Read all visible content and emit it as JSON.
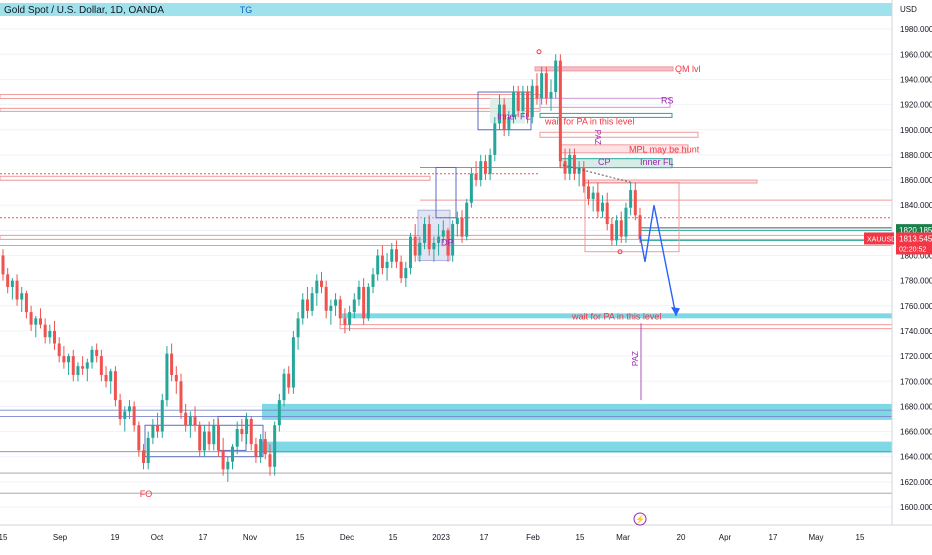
{
  "header": {
    "symbol_title": "Gold Spot / U.S. Dollar, 1D, OANDA",
    "top_band_label": "TG"
  },
  "price_axis": {
    "currency": "USD",
    "ticks": [
      1600,
      1620,
      1640,
      1660,
      1680,
      1700,
      1720,
      1740,
      1760,
      1780,
      1800,
      1820,
      1840,
      1860,
      1880,
      1900,
      1920,
      1940,
      1960,
      1980
    ],
    "tick_labels": [
      "1600.000",
      "1620.000",
      "1640.000",
      "1660.000",
      "1680.000",
      "1700.000",
      "1720.000",
      "1740.000",
      "1760.000",
      "1780.000",
      "1800.000",
      "1820.000",
      "1840.000",
      "1860.000",
      "1880.000",
      "1900.000",
      "1920.000",
      "1940.000",
      "1960.000",
      "1980.000"
    ],
    "price_tags": [
      {
        "value": 1820.185,
        "label": "1820.185",
        "color": "#1a7f4b"
      },
      {
        "value": 1813.545,
        "label": "1813.545",
        "sub": "02:20:52",
        "symbol": "XAUUSD",
        "color": "#f23645"
      }
    ]
  },
  "time_axis": {
    "labels": [
      "15",
      "Sep",
      "19",
      "Oct",
      "17",
      "Nov",
      "15",
      "Dec",
      "15",
      "2023",
      "17",
      "Feb",
      "15",
      "Mar",
      "20",
      "Apr",
      "17",
      "May",
      "15"
    ]
  },
  "annotations": {
    "qm_lvl": "QM lvl",
    "rs": "RS",
    "wait_pa_top": "wait for PA in this level",
    "inner_fl_left": "Inner FL",
    "paz_top": "PAZ",
    "mpl": "MPL may be hunt",
    "cp": "CP",
    "inner_fl_right": "Inner FL",
    "dp": "DP",
    "wait_pa_bottom": "wait for PA in this level",
    "paz_bottom": "PAZ",
    "fo": "FO"
  },
  "colors": {
    "up": "#26a69a",
    "down": "#ef5350",
    "zone_cyan": "#7fd8e6",
    "projection": "#2962ff",
    "label_red": "#f23645",
    "label_purple": "#9c27b0"
  },
  "chart_data": {
    "type": "candlestick",
    "title": "Gold Spot / U.S. Dollar, 1D, OANDA",
    "ylabel": "USD",
    "ylim": [
      1590,
      1995
    ],
    "x_ticks": [
      "15",
      "Sep",
      "19",
      "Oct",
      "17",
      "Nov",
      "15",
      "Dec",
      "15",
      "2023",
      "17",
      "Feb",
      "15",
      "Mar",
      "20",
      "Apr",
      "17",
      "May",
      "15"
    ],
    "candles": [
      [
        1800,
        1805,
        1780,
        1785
      ],
      [
        1785,
        1790,
        1770,
        1775
      ],
      [
        1775,
        1782,
        1765,
        1780
      ],
      [
        1780,
        1785,
        1760,
        1765
      ],
      [
        1765,
        1775,
        1755,
        1770
      ],
      [
        1770,
        1772,
        1750,
        1755
      ],
      [
        1755,
        1760,
        1740,
        1745
      ],
      [
        1745,
        1752,
        1735,
        1750
      ],
      [
        1750,
        1758,
        1742,
        1745
      ],
      [
        1745,
        1750,
        1730,
        1735
      ],
      [
        1735,
        1745,
        1730,
        1740
      ],
      [
        1740,
        1748,
        1725,
        1730
      ],
      [
        1730,
        1735,
        1715,
        1720
      ],
      [
        1720,
        1728,
        1710,
        1715
      ],
      [
        1715,
        1722,
        1705,
        1720
      ],
      [
        1720,
        1725,
        1700,
        1705
      ],
      [
        1705,
        1715,
        1700,
        1712
      ],
      [
        1712,
        1720,
        1705,
        1710
      ],
      [
        1710,
        1718,
        1700,
        1715
      ],
      [
        1715,
        1728,
        1710,
        1725
      ],
      [
        1725,
        1730,
        1715,
        1720
      ],
      [
        1720,
        1725,
        1700,
        1705
      ],
      [
        1705,
        1712,
        1695,
        1700
      ],
      [
        1700,
        1710,
        1690,
        1708
      ],
      [
        1708,
        1712,
        1680,
        1685
      ],
      [
        1685,
        1690,
        1665,
        1670
      ],
      [
        1670,
        1680,
        1660,
        1676
      ],
      [
        1676,
        1685,
        1670,
        1680
      ],
      [
        1680,
        1684,
        1660,
        1665
      ],
      [
        1665,
        1668,
        1640,
        1645
      ],
      [
        1645,
        1650,
        1630,
        1635
      ],
      [
        1635,
        1660,
        1630,
        1655
      ],
      [
        1655,
        1670,
        1650,
        1665
      ],
      [
        1665,
        1675,
        1655,
        1660
      ],
      [
        1660,
        1690,
        1655,
        1685
      ],
      [
        1685,
        1728,
        1680,
        1722
      ],
      [
        1722,
        1730,
        1700,
        1705
      ],
      [
        1705,
        1712,
        1690,
        1700
      ],
      [
        1700,
        1706,
        1670,
        1675
      ],
      [
        1675,
        1682,
        1660,
        1665
      ],
      [
        1665,
        1676,
        1655,
        1672
      ],
      [
        1672,
        1680,
        1660,
        1665
      ],
      [
        1665,
        1668,
        1640,
        1645
      ],
      [
        1645,
        1665,
        1640,
        1660
      ],
      [
        1660,
        1668,
        1645,
        1650
      ],
      [
        1650,
        1670,
        1645,
        1665
      ],
      [
        1665,
        1670,
        1640,
        1645
      ],
      [
        1645,
        1655,
        1625,
        1630
      ],
      [
        1630,
        1640,
        1620,
        1636
      ],
      [
        1636,
        1650,
        1630,
        1648
      ],
      [
        1648,
        1668,
        1642,
        1662
      ],
      [
        1662,
        1670,
        1652,
        1658
      ],
      [
        1658,
        1675,
        1650,
        1670
      ],
      [
        1670,
        1672,
        1645,
        1650
      ],
      [
        1650,
        1655,
        1635,
        1640
      ],
      [
        1640,
        1658,
        1635,
        1654
      ],
      [
        1654,
        1660,
        1638,
        1642
      ],
      [
        1642,
        1650,
        1625,
        1632
      ],
      [
        1632,
        1668,
        1625,
        1665
      ],
      [
        1665,
        1690,
        1660,
        1685
      ],
      [
        1685,
        1710,
        1680,
        1706
      ],
      [
        1706,
        1712,
        1690,
        1695
      ],
      [
        1695,
        1740,
        1690,
        1735
      ],
      [
        1735,
        1755,
        1725,
        1750
      ],
      [
        1750,
        1770,
        1745,
        1765
      ],
      [
        1765,
        1775,
        1750,
        1756
      ],
      [
        1756,
        1775,
        1752,
        1770
      ],
      [
        1770,
        1785,
        1760,
        1780
      ],
      [
        1780,
        1787,
        1770,
        1775
      ],
      [
        1775,
        1780,
        1750,
        1756
      ],
      [
        1756,
        1765,
        1745,
        1760
      ],
      [
        1760,
        1770,
        1752,
        1765
      ],
      [
        1765,
        1768,
        1745,
        1750
      ],
      [
        1750,
        1758,
        1738,
        1745
      ],
      [
        1745,
        1760,
        1740,
        1755
      ],
      [
        1755,
        1770,
        1750,
        1765
      ],
      [
        1765,
        1780,
        1760,
        1775
      ],
      [
        1775,
        1782,
        1745,
        1750
      ],
      [
        1750,
        1778,
        1748,
        1775
      ],
      [
        1775,
        1790,
        1770,
        1785
      ],
      [
        1785,
        1805,
        1780,
        1800
      ],
      [
        1800,
        1808,
        1785,
        1790
      ],
      [
        1790,
        1802,
        1780,
        1795
      ],
      [
        1795,
        1810,
        1790,
        1805
      ],
      [
        1805,
        1812,
        1790,
        1795
      ],
      [
        1795,
        1800,
        1778,
        1782
      ],
      [
        1782,
        1795,
        1775,
        1790
      ],
      [
        1790,
        1818,
        1785,
        1815
      ],
      [
        1815,
        1825,
        1795,
        1800
      ],
      [
        1800,
        1815,
        1795,
        1810
      ],
      [
        1810,
        1830,
        1805,
        1825
      ],
      [
        1825,
        1832,
        1800,
        1805
      ],
      [
        1805,
        1815,
        1795,
        1810
      ],
      [
        1810,
        1825,
        1800,
        1815
      ],
      [
        1815,
        1828,
        1810,
        1820
      ],
      [
        1820,
        1822,
        1795,
        1800
      ],
      [
        1800,
        1828,
        1795,
        1825
      ],
      [
        1825,
        1835,
        1815,
        1830
      ],
      [
        1830,
        1836,
        1810,
        1815
      ],
      [
        1815,
        1845,
        1812,
        1842
      ],
      [
        1842,
        1870,
        1838,
        1865
      ],
      [
        1865,
        1875,
        1855,
        1860
      ],
      [
        1860,
        1880,
        1855,
        1875
      ],
      [
        1875,
        1880,
        1860,
        1865
      ],
      [
        1865,
        1885,
        1860,
        1880
      ],
      [
        1880,
        1910,
        1875,
        1905
      ],
      [
        1905,
        1928,
        1900,
        1920
      ],
      [
        1920,
        1925,
        1895,
        1900
      ],
      [
        1900,
        1915,
        1895,
        1910
      ],
      [
        1910,
        1935,
        1905,
        1930
      ],
      [
        1930,
        1935,
        1910,
        1915
      ],
      [
        1915,
        1935,
        1910,
        1930
      ],
      [
        1930,
        1935,
        1905,
        1910
      ],
      [
        1910,
        1940,
        1905,
        1935
      ],
      [
        1935,
        1945,
        1920,
        1925
      ],
      [
        1925,
        1950,
        1920,
        1945
      ],
      [
        1945,
        1950,
        1920,
        1925
      ],
      [
        1925,
        1940,
        1915,
        1930
      ],
      [
        1930,
        1960,
        1925,
        1955
      ],
      [
        1955,
        1960,
        1870,
        1875
      ],
      [
        1875,
        1885,
        1860,
        1865
      ],
      [
        1865,
        1885,
        1860,
        1880
      ],
      [
        1880,
        1885,
        1860,
        1865
      ],
      [
        1865,
        1875,
        1855,
        1870
      ],
      [
        1870,
        1875,
        1850,
        1855
      ],
      [
        1855,
        1860,
        1840,
        1845
      ],
      [
        1845,
        1855,
        1835,
        1850
      ],
      [
        1850,
        1858,
        1830,
        1835
      ],
      [
        1835,
        1848,
        1830,
        1842
      ],
      [
        1842,
        1850,
        1820,
        1825
      ],
      [
        1825,
        1830,
        1808,
        1812
      ],
      [
        1812,
        1832,
        1808,
        1828
      ],
      [
        1828,
        1835,
        1810,
        1815
      ],
      [
        1815,
        1842,
        1810,
        1838
      ],
      [
        1838,
        1858,
        1832,
        1852
      ],
      [
        1852,
        1858,
        1828,
        1832
      ],
      [
        1832,
        1838,
        1810,
        1813
      ]
    ]
  }
}
